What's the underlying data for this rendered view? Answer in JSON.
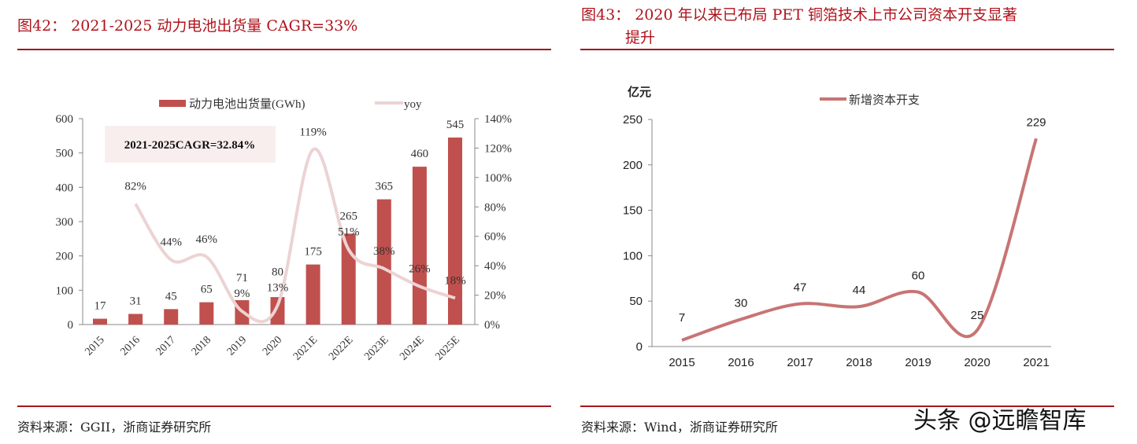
{
  "left": {
    "title": "图42： 2021-2025 动力电池出货量 CAGR=33%",
    "source": "资料来源：GGII，浙商证券研究所",
    "annotation": "2021-2025CAGR=32.84%"
  },
  "right": {
    "title_line1": "图43： 2020 年以来已布局 PET 铜箔技术上市公司资本开支显著",
    "title_line2": "提升",
    "source": "资料来源：Wind，浙商证券研究所"
  },
  "watermark": "头条 @远瞻智库",
  "chart_data": [
    {
      "type": "bar",
      "categories": [
        "2015",
        "2016",
        "2017",
        "2018",
        "2019",
        "2020",
        "2021E",
        "2022E",
        "2023E",
        "2024E",
        "2025E"
      ],
      "series": [
        {
          "name": "动力电池出货量(GWh)",
          "type": "bar",
          "axis": "left",
          "color": "#c0504d",
          "values": [
            17,
            31,
            45,
            65,
            71,
            80,
            175,
            265,
            365,
            460,
            545
          ]
        },
        {
          "name": "yoy",
          "type": "line",
          "axis": "right",
          "color": "#ecd3d3",
          "values": [
            null,
            82,
            44,
            46,
            9,
            13,
            119,
            51,
            38,
            26,
            18
          ],
          "labels": [
            null,
            "82%",
            "44%",
            "46%",
            "9%",
            "13%",
            "119%",
            "51%",
            "38%",
            "26%",
            "18%"
          ]
        }
      ],
      "ylim": [
        0,
        600
      ],
      "yticks": [
        0,
        100,
        200,
        300,
        400,
        500,
        600
      ],
      "y2lim": [
        0,
        140
      ],
      "y2ticks": [
        "0%",
        "20%",
        "40%",
        "60%",
        "80%",
        "100%",
        "120%",
        "140%"
      ],
      "legend": "top"
    },
    {
      "type": "line",
      "categories": [
        "2015",
        "2016",
        "2017",
        "2018",
        "2019",
        "2020",
        "2021"
      ],
      "series": [
        {
          "name": "新增资本开支",
          "color": "#c87474",
          "values": [
            7,
            30,
            47,
            44,
            60,
            25,
            229
          ]
        }
      ],
      "ylabel": "亿元",
      "ylim": [
        0,
        250
      ],
      "yticks": [
        0,
        50,
        100,
        150,
        200,
        250
      ],
      "legend": "top"
    }
  ]
}
